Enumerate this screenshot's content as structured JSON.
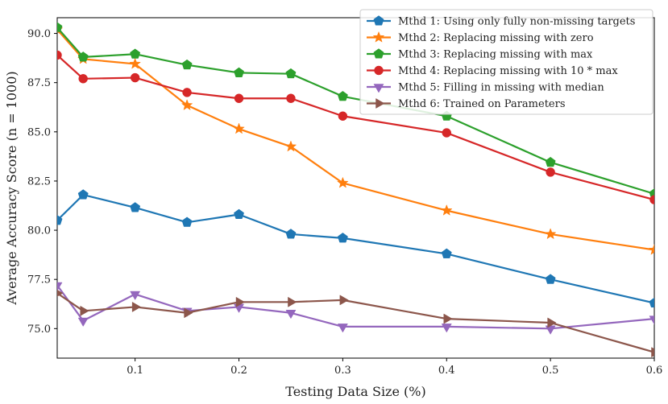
{
  "chart_data": {
    "type": "line",
    "title": "",
    "xlabel": "Testing Data Size (%)",
    "ylabel": "Average Accuracy Score (n = 1000)",
    "xlim": [
      0.025,
      0.6
    ],
    "ylim": [
      73.5,
      90.8
    ],
    "x": [
      0.025,
      0.05,
      0.1,
      0.15,
      0.2,
      0.25,
      0.3,
      0.4,
      0.5,
      0.6
    ],
    "xticks": [
      0.1,
      0.2,
      0.3,
      0.4,
      0.5,
      0.6
    ],
    "xtick_labels": [
      "0.1",
      "0.2",
      "0.3",
      "0.4",
      "0.5",
      "0.6"
    ],
    "yticks": [
      75.0,
      77.5,
      80.0,
      82.5,
      85.0,
      87.5,
      90.0
    ],
    "ytick_labels": [
      "75.0",
      "77.5",
      "80.0",
      "82.5",
      "85.0",
      "87.5",
      "90.0"
    ],
    "legend_position": "top-right",
    "series": [
      {
        "name": "Mthd 1: Using only fully non-missing targets",
        "color": "#1f77b4",
        "marker": "pentagon",
        "values": [
          80.5,
          81.8,
          81.15,
          80.4,
          80.8,
          79.8,
          79.6,
          78.8,
          77.5,
          76.3
        ]
      },
      {
        "name": "Mthd 2: Replacing missing with zero",
        "color": "#ff7f0e",
        "marker": "star",
        "values": [
          90.2,
          88.7,
          88.45,
          86.35,
          85.15,
          84.25,
          82.4,
          81.0,
          79.8,
          79.0
        ]
      },
      {
        "name": "Mthd 3: Replacing missing with max",
        "color": "#2ca02c",
        "marker": "pentagon",
        "values": [
          90.3,
          88.8,
          88.95,
          88.4,
          88.0,
          87.95,
          86.8,
          85.8,
          83.45,
          81.85
        ]
      },
      {
        "name": "Mthd 4: Replacing missing with 10 * max",
        "color": "#d62728",
        "marker": "circle",
        "values": [
          88.9,
          87.7,
          87.75,
          87.0,
          86.7,
          86.7,
          85.8,
          84.95,
          82.95,
          81.55
        ]
      },
      {
        "name": "Mthd 5: Filling in missing with median",
        "color": "#9467bd",
        "marker": "triangle-down",
        "values": [
          77.2,
          75.4,
          76.75,
          75.9,
          76.1,
          75.8,
          75.1,
          75.1,
          75.0,
          75.5
        ]
      },
      {
        "name": "Mthd 6: Trained on Parameters",
        "color": "#8c564b",
        "marker": "triangle-right",
        "values": [
          76.8,
          75.9,
          76.1,
          75.8,
          76.35,
          76.35,
          76.45,
          75.5,
          75.3,
          73.8
        ]
      }
    ]
  }
}
